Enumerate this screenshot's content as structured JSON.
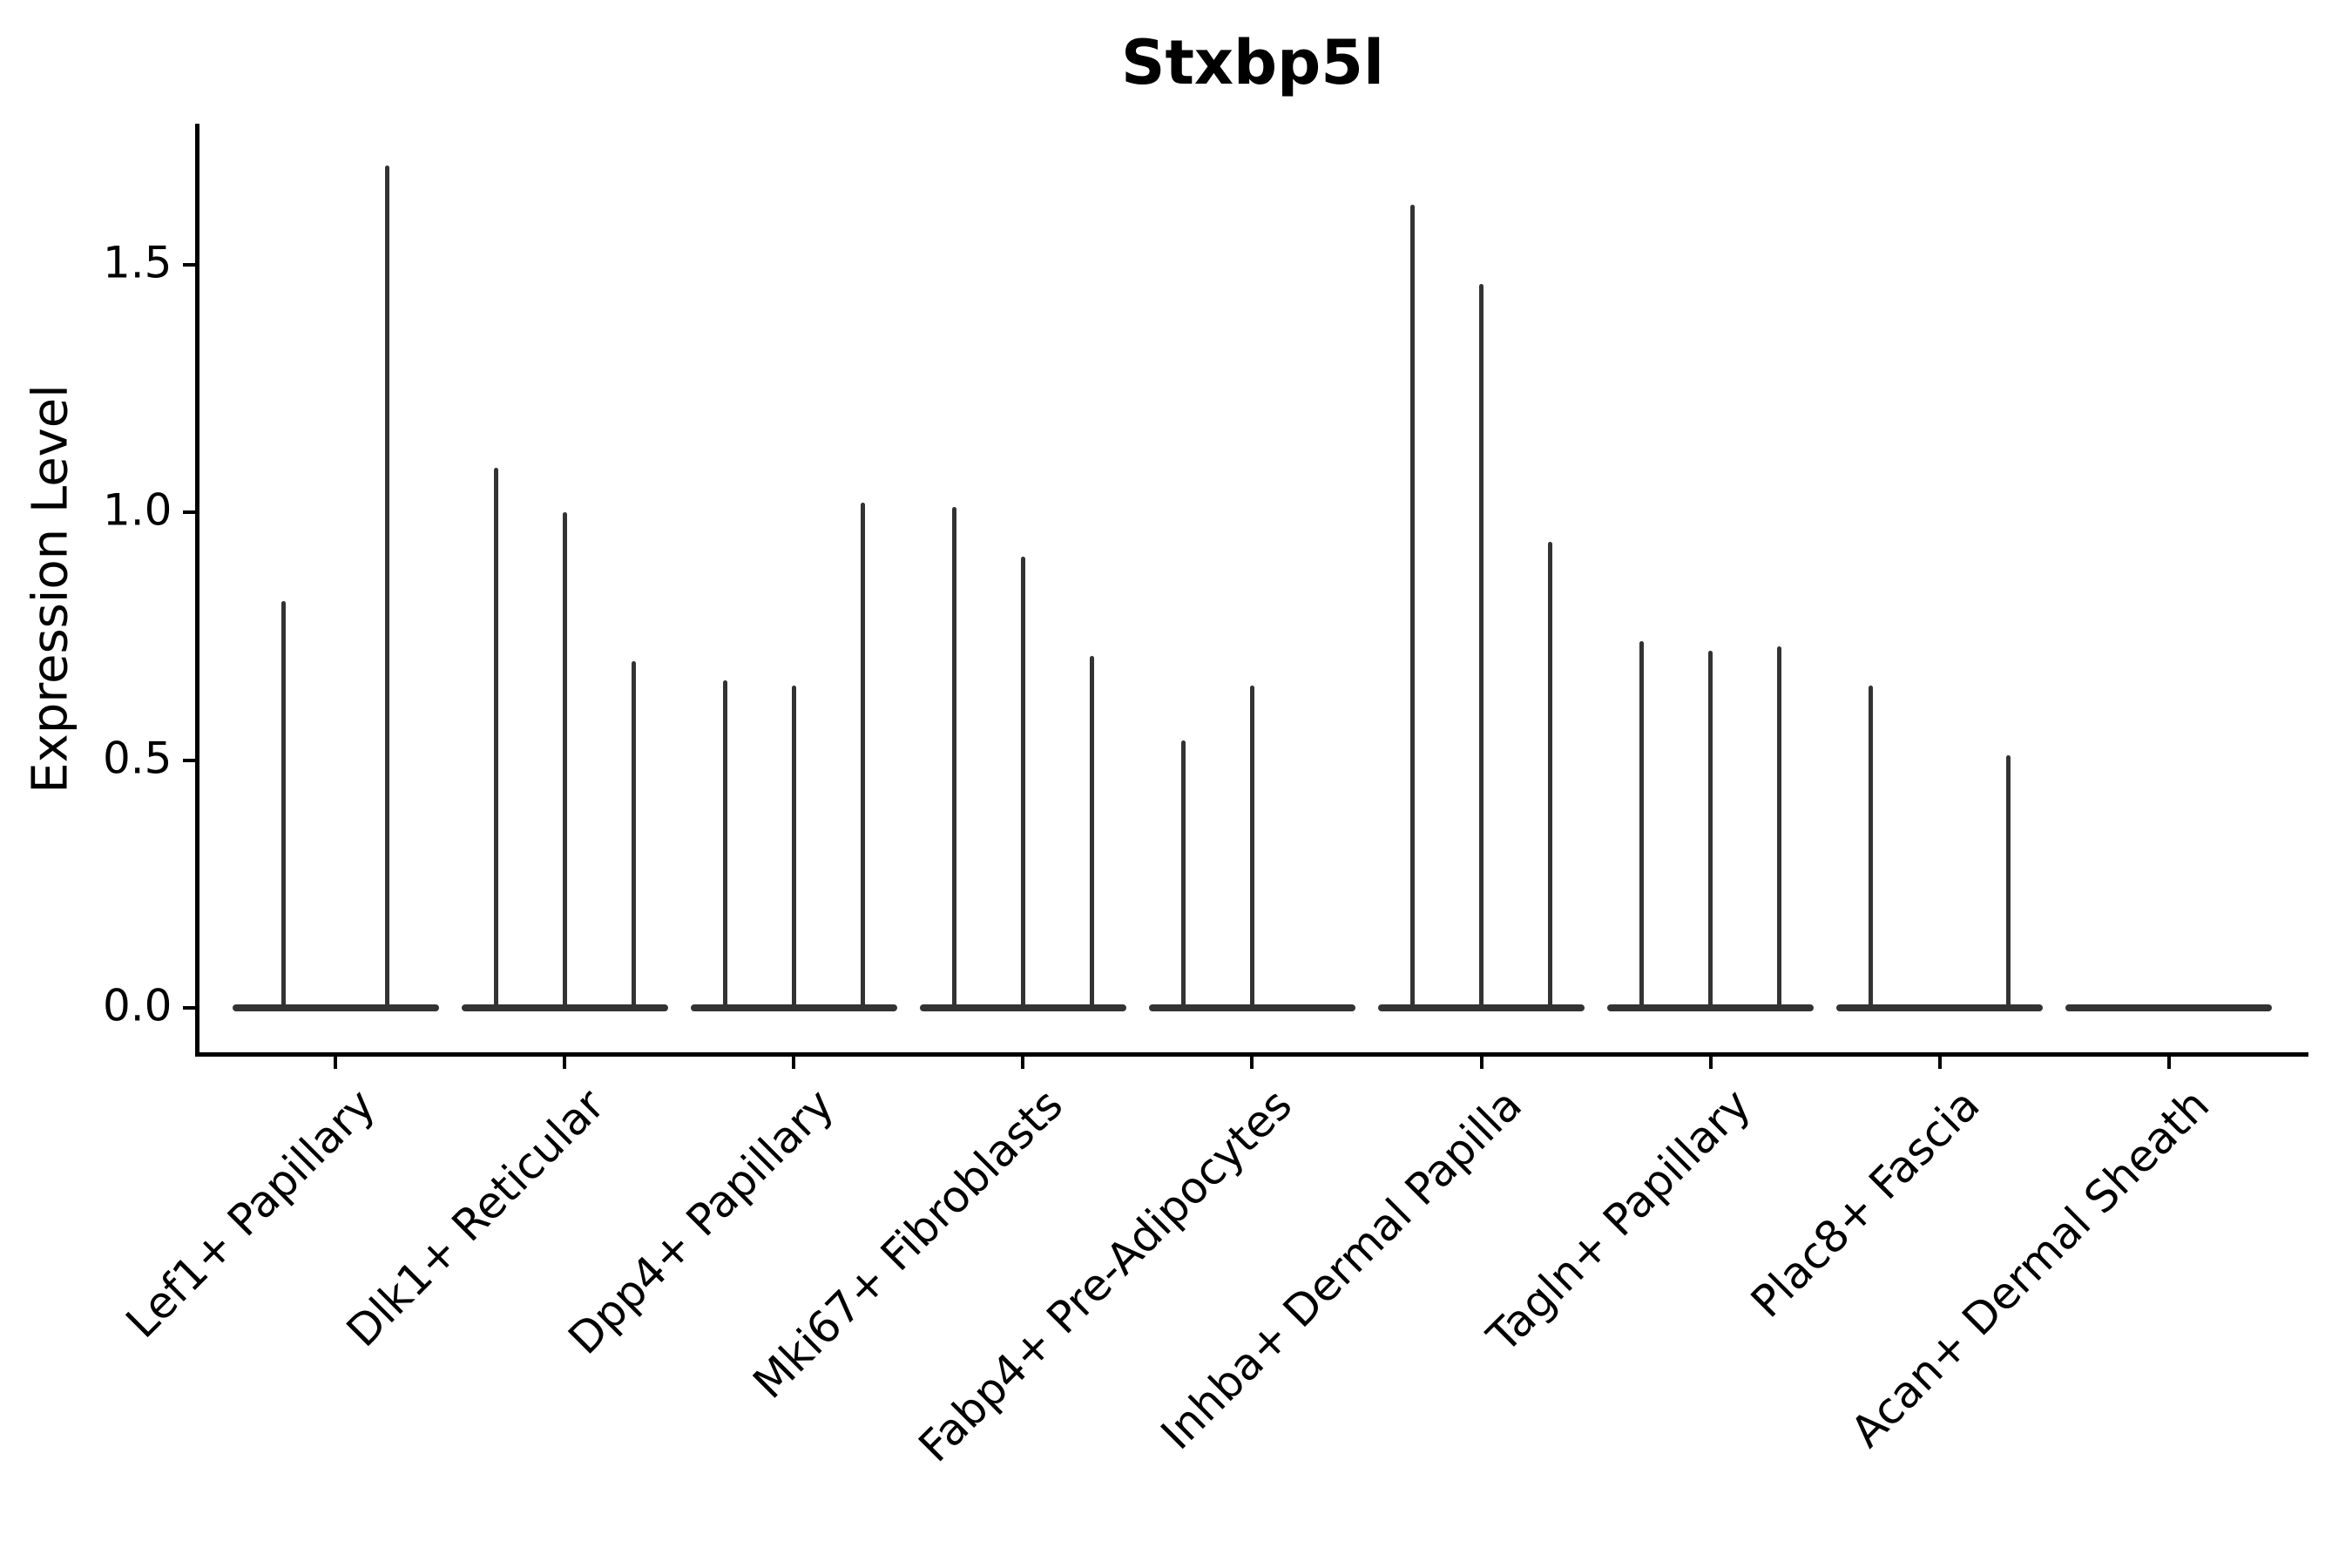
{
  "chart_data": {
    "type": "violin",
    "title": "Stxbp5l",
    "ylabel": "Expression Level",
    "xlabel": "",
    "yticks": [
      {
        "label": "0.0",
        "value": 0.0
      },
      {
        "label": "0.5",
        "value": 0.5
      },
      {
        "label": "1.0",
        "value": 1.0
      },
      {
        "label": "1.5",
        "value": 1.5
      }
    ],
    "ylim": [
      -0.1,
      1.78
    ],
    "grid": false,
    "legend": "none",
    "categories": [
      "Lef1+ Papillary",
      "Dlk1+ Reticular",
      "Dpp4+ Papillary",
      "Mki67+ Fibroblasts",
      "Fabp4+ Pre-Adipocytes",
      "Inhba+ Dermal Papilla",
      "Tagln+ Papillary",
      "Plac8+ Fascia",
      "Acan+ Dermal Sheath"
    ],
    "groups": [
      {
        "label": "Lef1+ Papillary",
        "violin_peaks": [
          0.82,
          1.7
        ]
      },
      {
        "label": "Dlk1+ Reticular",
        "violin_peaks": [
          1.09,
          1.0,
          0.7
        ]
      },
      {
        "label": "Dpp4+ Papillary",
        "violin_peaks": [
          0.66,
          0.65,
          1.02
        ]
      },
      {
        "label": "Mki67+ Fibroblasts",
        "violin_peaks": [
          1.01,
          0.91,
          0.71
        ]
      },
      {
        "label": "Fabp4+ Pre-Adipocytes",
        "violin_peaks": [
          0.54,
          0.65,
          0
        ]
      },
      {
        "label": "Inhba+ Dermal Papilla",
        "violin_peaks": [
          1.62,
          1.46,
          0.94
        ]
      },
      {
        "label": "Tagln+ Papillary",
        "violin_peaks": [
          0.74,
          0.72,
          0.73
        ]
      },
      {
        "label": "Plac8+ Fascia",
        "violin_peaks": [
          0.65,
          0,
          0.51
        ]
      },
      {
        "label": "Acan+ Dermal Sheath",
        "violin_peaks": [
          0,
          0,
          0
        ]
      }
    ],
    "colors": {
      "violin": "#333333",
      "axis": "#000000",
      "text": "#000000",
      "background": "#ffffff"
    }
  }
}
